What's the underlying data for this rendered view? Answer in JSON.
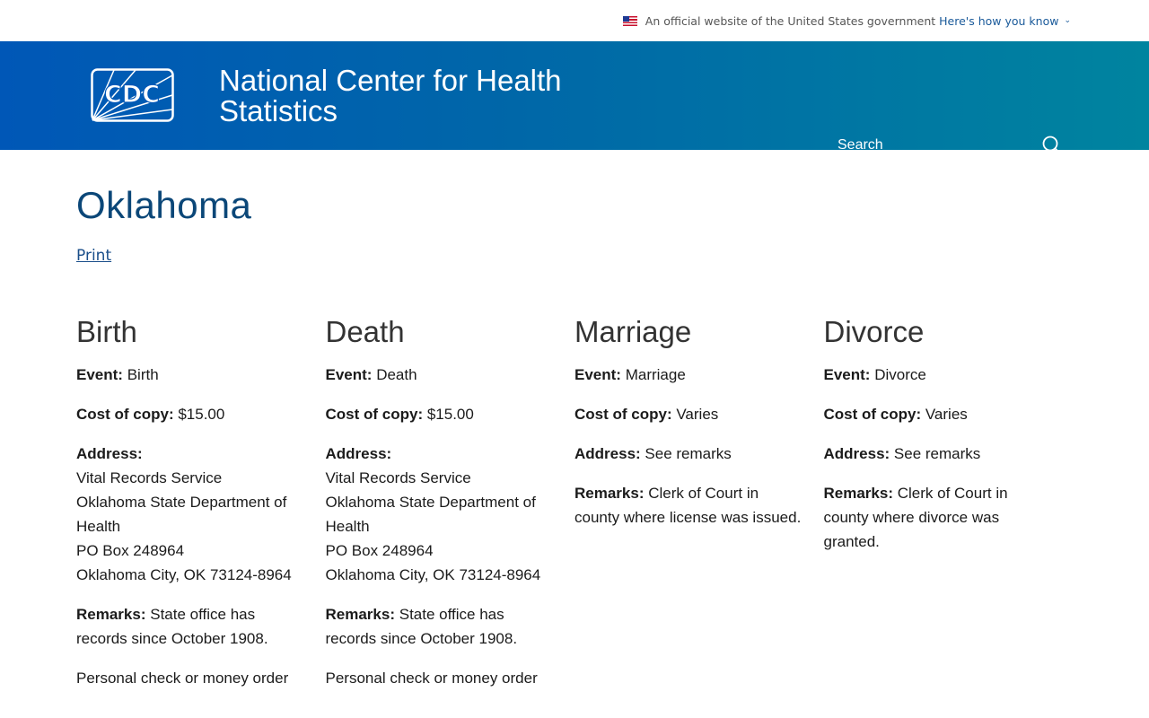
{
  "gov_banner": {
    "text": "An official website of the United States government",
    "link": "Here's how you know"
  },
  "header": {
    "logo_text": "CDC",
    "title_line1": "National Center for Health",
    "title_line2": "Statistics",
    "search_placeholder": "Search"
  },
  "page": {
    "title": "Oklahoma",
    "print_label": "Print"
  },
  "columns": [
    {
      "heading": "Birth",
      "fields": [
        {
          "label": "Event:",
          "value": "Birth"
        },
        {
          "label": "Cost of copy:",
          "value": "$15.00"
        },
        {
          "label": "Address:",
          "lines": [
            "Vital Records Service",
            "Oklahoma State Department of Health",
            "PO Box 248964",
            "Oklahoma City, OK 73124-8964"
          ]
        },
        {
          "label": "Remarks:",
          "value": "State office has records since October 1908."
        },
        {
          "label": "",
          "value": "Personal check or money order"
        }
      ]
    },
    {
      "heading": "Death",
      "fields": [
        {
          "label": "Event:",
          "value": "Death"
        },
        {
          "label": "Cost of copy:",
          "value": "$15.00"
        },
        {
          "label": "Address:",
          "lines": [
            "Vital Records Service",
            "Oklahoma State Department of Health",
            "PO Box 248964",
            "Oklahoma City, OK 73124-8964"
          ]
        },
        {
          "label": "Remarks:",
          "value": "State office has records since October 1908."
        },
        {
          "label": "",
          "value": "Personal check or money order"
        }
      ]
    },
    {
      "heading": "Marriage",
      "fields": [
        {
          "label": "Event:",
          "value": "Marriage"
        },
        {
          "label": "Cost of copy:",
          "value": "Varies"
        },
        {
          "label": "Address:",
          "value": "See remarks"
        },
        {
          "label": "Remarks:",
          "value": "Clerk of Court in county where license was issued."
        }
      ]
    },
    {
      "heading": "Divorce",
      "fields": [
        {
          "label": "Event:",
          "value": "Divorce"
        },
        {
          "label": "Cost of copy:",
          "value": "Varies"
        },
        {
          "label": "Address:",
          "value": "See remarks"
        },
        {
          "label": "Remarks:",
          "value": "Clerk of Court in county where divorce was granted."
        }
      ]
    }
  ]
}
